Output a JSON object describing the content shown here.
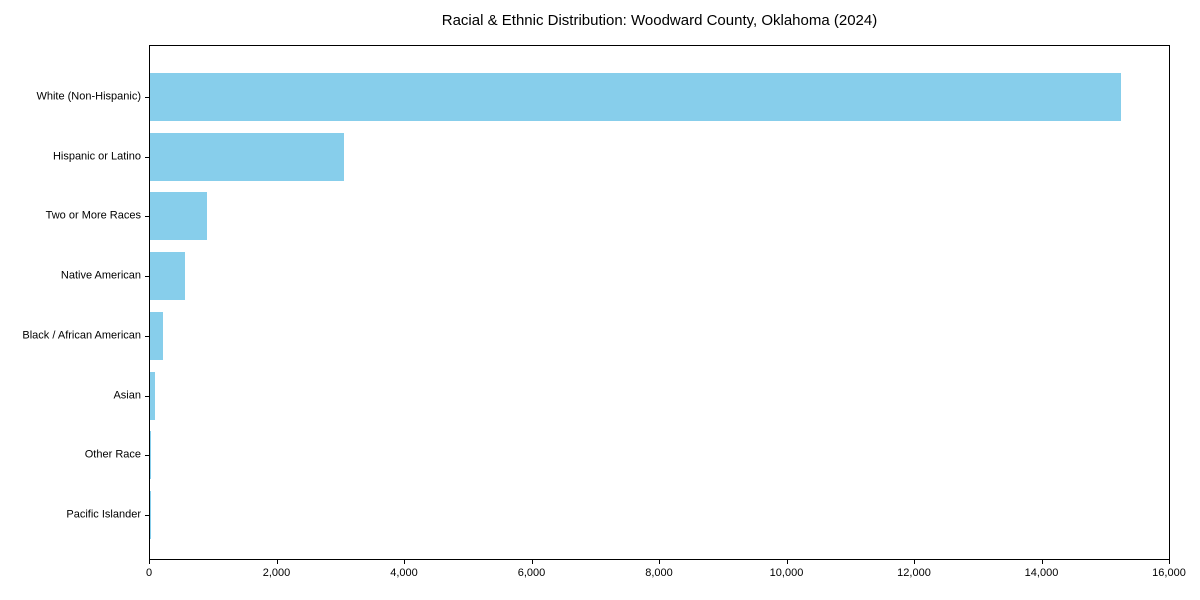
{
  "title": "Racial & Ethnic Distribution: Woodward County, Oklahoma (2024)",
  "colors": {
    "bar": "#87CEEB",
    "spine": "#000000",
    "text": "#000000",
    "background": "#ffffff"
  },
  "chart_data": {
    "type": "bar",
    "orientation": "horizontal",
    "title": "Racial & Ethnic Distribution: Woodward County, Oklahoma (2024)",
    "categories": [
      "White (Non-Hispanic)",
      "Hispanic or Latino",
      "Two or More Races",
      "Native American",
      "Black / African American",
      "Asian",
      "Other Race",
      "Pacific Islander"
    ],
    "values": [
      15250,
      3050,
      900,
      550,
      200,
      80,
      15,
      5
    ],
    "xlabel": "",
    "ylabel": "",
    "xlim": [
      0,
      16000
    ],
    "x_ticks": [
      0,
      2000,
      4000,
      6000,
      8000,
      10000,
      12000,
      14000,
      16000
    ],
    "x_tick_labels": [
      "0",
      "2,000",
      "4,000",
      "6,000",
      "8,000",
      "10,000",
      "12,000",
      "14,000",
      "16,000"
    ],
    "bar_color": "#87CEEB",
    "grid": false,
    "legend_position": "none"
  }
}
